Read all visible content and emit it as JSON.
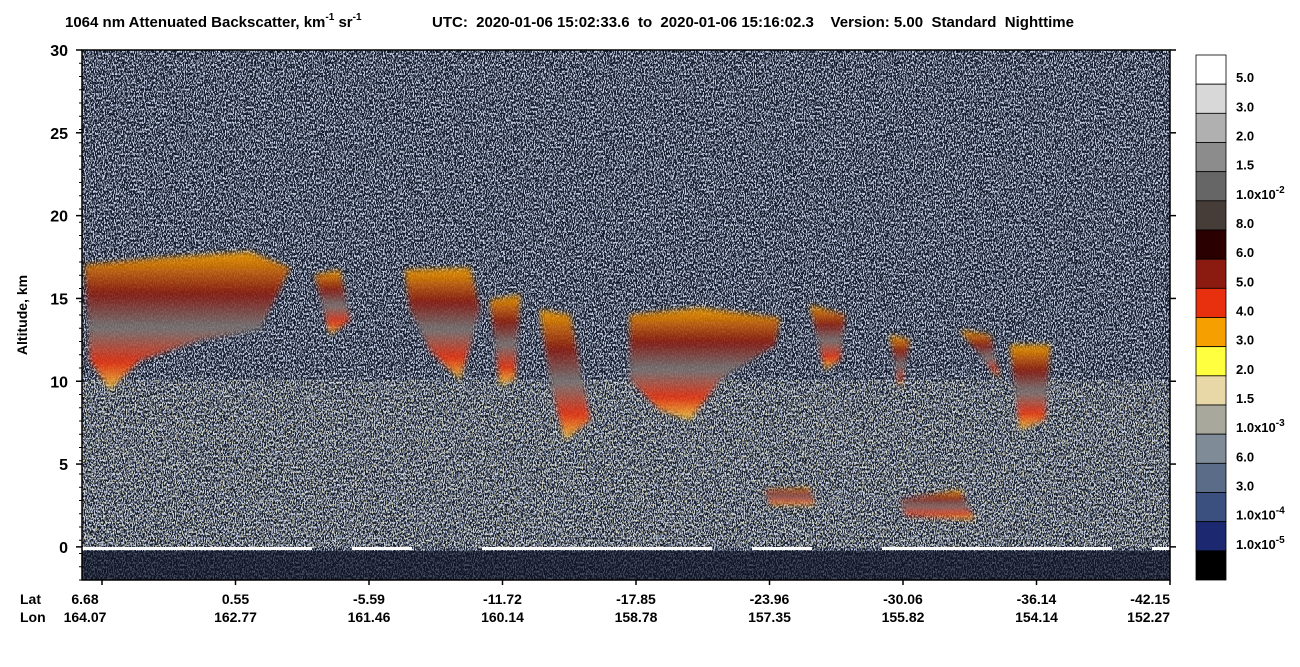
{
  "chart_data": {
    "type": "heatmap",
    "title": [
      "1064 nm Attenuated Backscatter, km",
      "-1",
      " sr",
      "-1"
    ],
    "subtitle": "UTC:  2020-01-06 15:02:33.6  to  2020-01-06 15:16:02.3    Version: 5.00  Standard  Nighttime",
    "y_label": "Altitude, km",
    "ylim": [
      -2,
      30
    ],
    "yticks": [
      0,
      5,
      10,
      15,
      20,
      25,
      30
    ],
    "x_rows": [
      {
        "name": "Lat",
        "labels": [
          "6.68",
          "0.55",
          "-5.59",
          "-11.72",
          "-17.85",
          "-23.96",
          "-30.06",
          "-36.14",
          "-42.15"
        ]
      },
      {
        "name": "Lon",
        "labels": [
          "164.07",
          "162.77",
          "161.46",
          "160.14",
          "158.78",
          "157.35",
          "155.82",
          "154.14",
          "152.27"
        ]
      }
    ],
    "colorbar": {
      "colors": [
        "#ffffff",
        "#d8d8d8",
        "#b0b0b0",
        "#8c8c8c",
        "#666666",
        "#463c38",
        "#2a0000",
        "#8b1a10",
        "#e8300e",
        "#f5a000",
        "#ffff40",
        "#e8d8a8",
        "#a8a89c",
        "#7f8c98",
        "#5a6c88",
        "#3c5080",
        "#1c2870",
        "#000000"
      ],
      "labels": [
        "5.0",
        "3.0",
        "2.0",
        "1.5",
        {
          "label": "1.0x10",
          "exponent": "-2"
        },
        "8.0",
        "6.0",
        "5.0",
        "4.0",
        "3.0",
        "2.0",
        "1.5",
        {
          "label": "1.0x10",
          "exponent": "-3"
        },
        "6.0",
        "3.0",
        {
          "label": "1.0x10",
          "exponent": "-4"
        },
        {
          "label": "1.0x10",
          "exponent": "-5"
        }
      ]
    }
  }
}
